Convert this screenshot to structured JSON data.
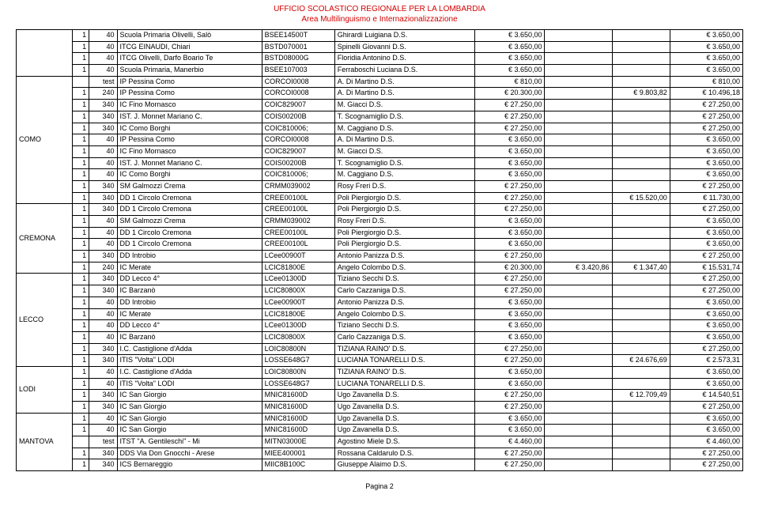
{
  "header": {
    "line1": "UFFICIO SCOLASTICO REGIONALE PER LA LOMBARDIA",
    "line2": "Area Multilinguismo e Internazionalizzazione"
  },
  "footer": "Pagina 2",
  "headerColor": "#d40000",
  "groups": [
    {
      "start": 0,
      "span": 4,
      "label": ""
    },
    {
      "start": 4,
      "span": 11,
      "label": "COMO"
    },
    {
      "start": 15,
      "span": 6,
      "label": "CREMONA"
    },
    {
      "start": 21,
      "span": 8,
      "label": "LECCO"
    },
    {
      "start": 29,
      "span": 4,
      "label": "LODI"
    },
    {
      "start": 33,
      "span": 7,
      "label": "MANTOVA"
    }
  ],
  "rows": [
    {
      "c1": "1",
      "c2": "40",
      "c3": "Scuola Primaria Olivelli, Salò",
      "c4": "BSEE14500T",
      "c5": "Ghirardi Luigiana D.S.",
      "c6": "€ 3.650,00",
      "c7": "",
      "c8": "",
      "c9": "€ 3.650,00"
    },
    {
      "c1": "1",
      "c2": "40",
      "c3": "ITCG EINAUDI, Chiari",
      "c4": "BSTD070001",
      "c5": "Spinelli Giovanni D.S.",
      "c6": "€ 3.650,00",
      "c7": "",
      "c8": "",
      "c9": "€ 3.650,00"
    },
    {
      "c1": "1",
      "c2": "40",
      "c3": "ITCG Olivelli, Darfo Boario Te",
      "c4": "BSTD08000G",
      "c5": "Floridia Antonino D.S.",
      "c6": "€ 3.650,00",
      "c7": "",
      "c8": "",
      "c9": "€ 3.650,00"
    },
    {
      "c1": "1",
      "c2": "40",
      "c3": "Scuola Primaria, Manerbio",
      "c4": "BSEE107003",
      "c5": "Ferraboschi Luciana D.S.",
      "c6": "€ 3.650,00",
      "c7": "",
      "c8": "",
      "c9": "€ 3.650,00"
    },
    {
      "c1": "",
      "c2": "test",
      "c3": "IP Pessina Como",
      "c4": "CORCOI0008",
      "c5": "A. Di Martino D.S.",
      "c6": "€ 810,00",
      "c7": "",
      "c8": "",
      "c9": "€ 810,00"
    },
    {
      "c1": "1",
      "c2": "240",
      "c3": "IP Pessina Como",
      "c4": "CORCOI0008",
      "c5": "A. Di Martino D.S.",
      "c6": "€ 20.300,00",
      "c7": "",
      "c8": "€ 9.803,82",
      "c9": "€ 10.496,18"
    },
    {
      "c1": "1",
      "c2": "340",
      "c3": "IC Fino Mornasco",
      "c4": "COIC829007",
      "c5": "M. Giacci D.S.",
      "c6": "€ 27.250,00",
      "c7": "",
      "c8": "",
      "c9": "€ 27.250,00"
    },
    {
      "c1": "1",
      "c2": "340",
      "c3": "IST. J. Monnet Mariano C.",
      "c4": "COIS00200B",
      "c5": "T. Scognamiglio D.S.",
      "c6": "€ 27.250,00",
      "c7": "",
      "c8": "",
      "c9": "€ 27.250,00"
    },
    {
      "c1": "1",
      "c2": "340",
      "c3": "IC Como Borghi",
      "c4": "COIC810006;",
      "c5": "M. Caggiano D.S.",
      "c6": "€ 27.250,00",
      "c7": "",
      "c8": "",
      "c9": "€ 27.250,00"
    },
    {
      "c1": "1",
      "c2": "40",
      "c3": "IP Pessina Como",
      "c4": "CORCOI0008",
      "c5": "A. Di Martino D.S.",
      "c6": "€ 3.650,00",
      "c7": "",
      "c8": "",
      "c9": "€ 3.650,00"
    },
    {
      "c1": "1",
      "c2": "40",
      "c3": "IC Fino Mornasco",
      "c4": "COIC829007",
      "c5": "M. Giacci D.S.",
      "c6": "€ 3.650,00",
      "c7": "",
      "c8": "",
      "c9": "€ 3.650,00"
    },
    {
      "c1": "1",
      "c2": "40",
      "c3": "IST. J. Monnet Mariano C.",
      "c4": "COIS00200B",
      "c5": "T. Scognamiglio D.S.",
      "c6": "€ 3.650,00",
      "c7": "",
      "c8": "",
      "c9": "€ 3.650,00"
    },
    {
      "c1": "1",
      "c2": "40",
      "c3": "IC Como Borghi",
      "c4": "COIC810006;",
      "c5": "M. Caggiano D.S.",
      "c6": "€ 3.650,00",
      "c7": "",
      "c8": "",
      "c9": "€ 3.650,00"
    },
    {
      "c1": "1",
      "c2": "340",
      "c3": "SM Galmozzi Crema",
      "c4": "CRMM039002",
      "c5": "Rosy Freri D.S.",
      "c6": "€ 27.250,00",
      "c7": "",
      "c8": "",
      "c9": "€ 27.250,00"
    },
    {
      "c1": "1",
      "c2": "340",
      "c3": "DD 1 Circolo Cremona",
      "c4": "CREE00100L",
      "c5": "Poli Piergiorgio D.S.",
      "c6": "€ 27.250,00",
      "c7": "",
      "c8": "€ 15.520,00",
      "c9": "€ 11.730,00"
    },
    {
      "c1": "1",
      "c2": "340",
      "c3": "DD 1 Circolo Cremona",
      "c4": "CREE00100L",
      "c5": "Poli Piergiorgio D.S.",
      "c6": "€ 27.250,00",
      "c7": "",
      "c8": "",
      "c9": "€ 27.250,00"
    },
    {
      "c1": "1",
      "c2": "40",
      "c3": "SM Galmozzi Crema",
      "c4": "CRMM039002",
      "c5": "Rosy Freri D.S.",
      "c6": "€ 3.650,00",
      "c7": "",
      "c8": "",
      "c9": "€ 3.650,00"
    },
    {
      "c1": "1",
      "c2": "40",
      "c3": "DD 1 Circolo Cremona",
      "c4": "CREE00100L",
      "c5": "Poli Piergiorgio D.S.",
      "c6": "€ 3.650,00",
      "c7": "",
      "c8": "",
      "c9": "€ 3.650,00"
    },
    {
      "c1": "1",
      "c2": "40",
      "c3": "DD 1 Circolo Cremona",
      "c4": "CREE00100L",
      "c5": "Poli Piergiorgio D.S.",
      "c6": "€ 3.650,00",
      "c7": "",
      "c8": "",
      "c9": "€ 3.650,00"
    },
    {
      "c1": "1",
      "c2": "340",
      "c3": "DD Introbio",
      "c4": "LCee00900T",
      "c5": "Antonio Panizza D.S.",
      "c6": "€ 27.250,00",
      "c7": "",
      "c8": "",
      "c9": "€ 27.250,00"
    },
    {
      "c1": "1",
      "c2": "240",
      "c3": "IC Merate",
      "c4": "LCIC81800E",
      "c5": "Angelo Colombo D.S.",
      "c6": "€ 20.300,00",
      "c7": "€ 3.420,86",
      "c8": "€ 1.347,40",
      "c9": "€ 15.531,74"
    },
    {
      "c1": "1",
      "c2": "340",
      "c3": "DD Lecco 4°",
      "c4": "LCee01300D",
      "c5": "Tiziano Secchi D.S.",
      "c6": "€ 27.250,00",
      "c7": "",
      "c8": "",
      "c9": "€ 27.250,00"
    },
    {
      "c1": "1",
      "c2": "340",
      "c3": "IC Barzanò",
      "c4": "LCIC80800X",
      "c5": "Carlo Cazzaniga D.S.",
      "c6": "€ 27.250,00",
      "c7": "",
      "c8": "",
      "c9": "€ 27.250,00"
    },
    {
      "c1": "1",
      "c2": "40",
      "c3": "DD Introbio",
      "c4": "LCee00900T",
      "c5": "Antonio Panizza D.S.",
      "c6": "€ 3.650,00",
      "c7": "",
      "c8": "",
      "c9": "€ 3.650,00"
    },
    {
      "c1": "1",
      "c2": "40",
      "c3": "IC Merate",
      "c4": "LCIC81800E",
      "c5": "Angelo Colombo D.S.",
      "c6": "€ 3.650,00",
      "c7": "",
      "c8": "",
      "c9": "€ 3.650,00"
    },
    {
      "c1": "1",
      "c2": "40",
      "c3": "DD Lecco 4°",
      "c4": "LCee01300D",
      "c5": "Tiziano Secchi D.S.",
      "c6": "€ 3.650,00",
      "c7": "",
      "c8": "",
      "c9": "€ 3.650,00"
    },
    {
      "c1": "1",
      "c2": "40",
      "c3": "IC Barzanò",
      "c4": "LCIC80800X",
      "c5": "Carlo Cazzaniga D.S.",
      "c6": "€ 3.650,00",
      "c7": "",
      "c8": "",
      "c9": "€ 3.650,00"
    },
    {
      "c1": "1",
      "c2": "340",
      "c3": "I.C. Castiglione d'Adda",
      "c4": "LOIC80800N",
      "c5": "TIZIANA RAINO' D.S.",
      "c6": "€ 27.250,00",
      "c7": "",
      "c8": "",
      "c9": "€ 27.250,00"
    },
    {
      "c1": "1",
      "c2": "340",
      "c3": "ITIS \"Volta\" LODI",
      "c4": "LOSSE648G7",
      "c5": "LUCIANA TONARELLI D.S.",
      "c6": "€ 27.250,00",
      "c7": "",
      "c8": "€ 24.676,69",
      "c9": "€ 2.573,31"
    },
    {
      "c1": "1",
      "c2": "40",
      "c3": "I.C. Castiglione d'Adda",
      "c4": "LOIC80800N",
      "c5": "TIZIANA RAINO' D.S.",
      "c6": "€ 3.650,00",
      "c7": "",
      "c8": "",
      "c9": "€ 3.650,00"
    },
    {
      "c1": "1",
      "c2": "40",
      "c3": "ITIS \"Volta\" LODI",
      "c4": "LOSSE648G7",
      "c5": "LUCIANA TONARELLI D.S.",
      "c6": "€ 3.650,00",
      "c7": "",
      "c8": "",
      "c9": "€ 3.650,00"
    },
    {
      "c1": "1",
      "c2": "340",
      "c3": "IC San Giorgio",
      "c4": "MNIC81600D",
      "c5": "Ugo Zavanella D.S.",
      "c6": "€ 27.250,00",
      "c7": "",
      "c8": "€ 12.709,49",
      "c9": "€ 14.540,51"
    },
    {
      "c1": "1",
      "c2": "340",
      "c3": "IC San Giorgio",
      "c4": "MNIC81600D",
      "c5": "Ugo Zavanella D.S.",
      "c6": "€ 27.250,00",
      "c7": "",
      "c8": "",
      "c9": "€ 27.250,00"
    },
    {
      "c1": "1",
      "c2": "40",
      "c3": "IC San Giorgio",
      "c4": "MNIC81600D",
      "c5": "Ugo Zavanella D.S.",
      "c6": "€ 3.650,00",
      "c7": "",
      "c8": "",
      "c9": "€ 3.650,00"
    },
    {
      "c1": "1",
      "c2": "40",
      "c3": "IC San Giorgio",
      "c4": "MNIC81600D",
      "c5": "Ugo Zavanella D.S.",
      "c6": "€ 3.650,00",
      "c7": "",
      "c8": "",
      "c9": "€ 3.650,00"
    },
    {
      "c1": "",
      "c2": "test",
      "c3": "ITST \"A. Gentileschi\" - Mi",
      "c4": "MITN03000E",
      "c5": "Agostino Miele D.S.",
      "c6": "€ 4.460,00",
      "c7": "",
      "c8": "",
      "c9": "€ 4.460,00"
    },
    {
      "c1": "1",
      "c2": "340",
      "c3": "DDS Via Don Gnocchi - Arese",
      "c4": "MIEE400001",
      "c5": "Rossana Caldarulo D.S.",
      "c6": "€ 27.250,00",
      "c7": "",
      "c8": "",
      "c9": "€ 27.250,00",
      "tall": true
    },
    {
      "c1": "1",
      "c2": "340",
      "c3": "ICS Bernareggio",
      "c4": "MIIC8B100C",
      "c5": "Giuseppe Alaimo D.S.",
      "c6": "€ 27.250,00",
      "c7": "",
      "c8": "",
      "c9": "€ 27.250,00"
    }
  ]
}
